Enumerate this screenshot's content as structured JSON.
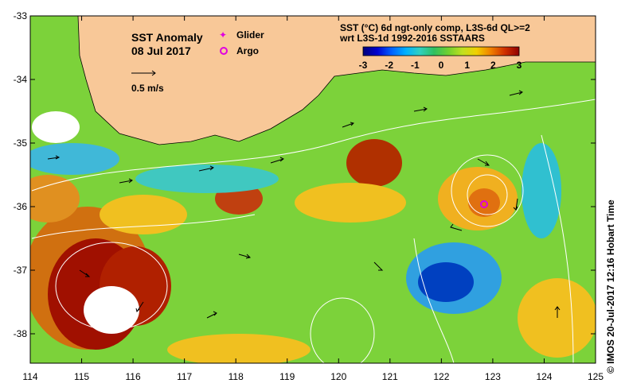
{
  "map": {
    "title_line1": "SST Anomaly",
    "title_line2": "08 Jul 2017",
    "vector_scale_label": "0.5 m/s",
    "legend": {
      "glider_label": "Glider",
      "argo_label": "Argo",
      "glider_color": "#e000e0",
      "argo_color": "#e000e0"
    },
    "colorbar": {
      "line1": "SST (°C) 6d ngt-only comp, L3S-6d QL>=2",
      "line2": "wrt L3S-1d 1992-2016 SSTAARS",
      "ticks": [
        "-3",
        "-2",
        "-1",
        "0",
        "1",
        "2",
        "3"
      ],
      "colors": [
        "#00007a",
        "#0000d0",
        "#0060ff",
        "#00b0ff",
        "#30d0c0",
        "#30c060",
        "#70d030",
        "#c0e020",
        "#f0d000",
        "#f08000",
        "#d03000",
        "#900000"
      ]
    },
    "x_ticks": [
      "114",
      "115",
      "116",
      "117",
      "118",
      "119",
      "120",
      "121",
      "122",
      "123",
      "124",
      "125"
    ],
    "y_ticks": [
      "-33",
      "-34",
      "-35",
      "-36",
      "-37",
      "-38"
    ],
    "land_color": "#f8c898",
    "credit": "©  IMOS 20-Jul-2017 12:16 Hobart Time"
  }
}
